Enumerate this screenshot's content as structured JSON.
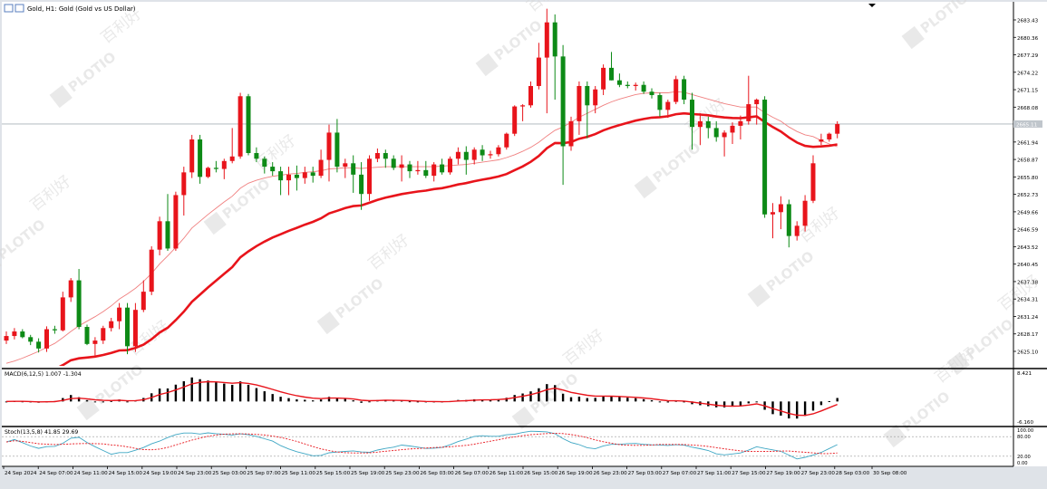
{
  "header": {
    "title": "Gold, H1:  Gold (Gold vs US Dollar)"
  },
  "colors": {
    "bull": "#e8141b",
    "bear": "#0d8a16",
    "ma_slow": "#e8141b",
    "ma_fast": "#f08080",
    "current_line": "#a9b0b8",
    "macd_hist": "#000000",
    "stoch_main": "#3fa7c4",
    "stoch_signal": "#e8141b",
    "watermark": "#d8d8d8"
  },
  "watermark": {
    "brand": "PLOTIO",
    "cjk": "百利好"
  },
  "price_axis": {
    "ticks": [
      "2683.43",
      "2680.36",
      "2677.29",
      "2674.22",
      "2671.15",
      "2668.08",
      "2665.01",
      "2661.94",
      "2658.87",
      "2655.80",
      "2652.73",
      "2649.66",
      "2646.59",
      "2643.52",
      "2640.45",
      "2637.38",
      "2634.31",
      "2631.24",
      "2628.17",
      "2625.10"
    ],
    "current_label": "2665.11"
  },
  "macd": {
    "label": "MACD(6,12,5) 1.007 -1.304",
    "axis_top": "8.421",
    "axis_bottom": "-6.160"
  },
  "stoch": {
    "label": "Stoch(13,5,8) 41.85 29.69",
    "levels": [
      "100.00",
      "80.00",
      "20.00",
      "0.00"
    ]
  },
  "time_axis": {
    "labels": [
      "24 Sep 2024",
      "24 Sep 07:00",
      "24 Sep 11:00",
      "24 Sep 15:00",
      "24 Sep 19:00",
      "24 Sep 23:00",
      "25 Sep 03:00",
      "25 Sep 07:00",
      "25 Sep 11:00",
      "25 Sep 15:00",
      "25 Sep 19:00",
      "25 Sep 23:00",
      "26 Sep 03:00",
      "26 Sep 07:00",
      "26 Sep 11:00",
      "26 Sep 15:00",
      "26 Sep 19:00",
      "26 Sep 23:00",
      "27 Sep 03:00",
      "27 Sep 07:00",
      "27 Sep 11:00",
      "27 Sep 15:00",
      "27 Sep 19:00",
      "27 Sep 23:00",
      "28 Sep 03:00",
      "30 Sep 08:00"
    ]
  },
  "chart_data": {
    "type": "candlestick",
    "title": "Gold, H1:  Gold (Gold vs US Dollar)",
    "ylim": [
      2623.5,
      2686.0
    ],
    "candles": [
      {
        "o": 2627.0,
        "h": 2628.6,
        "l": 2626.4,
        "c": 2627.8
      },
      {
        "o": 2627.8,
        "h": 2629.2,
        "l": 2627.2,
        "c": 2628.6
      },
      {
        "o": 2628.6,
        "h": 2629.0,
        "l": 2627.4,
        "c": 2627.6
      },
      {
        "o": 2627.6,
        "h": 2628.0,
        "l": 2626.2,
        "c": 2626.8
      },
      {
        "o": 2626.8,
        "h": 2627.4,
        "l": 2624.9,
        "c": 2625.6
      },
      {
        "o": 2625.6,
        "h": 2629.5,
        "l": 2625.0,
        "c": 2629.0
      },
      {
        "o": 2629.0,
        "h": 2629.6,
        "l": 2628.2,
        "c": 2628.8
      },
      {
        "o": 2628.8,
        "h": 2635.6,
        "l": 2628.6,
        "c": 2634.6
      },
      {
        "o": 2634.6,
        "h": 2638.0,
        "l": 2633.8,
        "c": 2637.6
      },
      {
        "o": 2637.6,
        "h": 2639.6,
        "l": 2629.0,
        "c": 2629.4
      },
      {
        "o": 2629.4,
        "h": 2629.8,
        "l": 2626.2,
        "c": 2626.4
      },
      {
        "o": 2626.4,
        "h": 2627.6,
        "l": 2624.3,
        "c": 2627.0
      },
      {
        "o": 2627.0,
        "h": 2629.6,
        "l": 2626.4,
        "c": 2629.2
      },
      {
        "o": 2629.2,
        "h": 2631.0,
        "l": 2628.6,
        "c": 2630.4
      },
      {
        "o": 2630.4,
        "h": 2633.6,
        "l": 2629.0,
        "c": 2632.8
      },
      {
        "o": 2632.8,
        "h": 2633.6,
        "l": 2624.6,
        "c": 2626.0
      },
      {
        "o": 2626.0,
        "h": 2633.6,
        "l": 2625.0,
        "c": 2632.4
      },
      {
        "o": 2632.4,
        "h": 2637.6,
        "l": 2632.0,
        "c": 2635.6
      },
      {
        "o": 2635.6,
        "h": 2643.6,
        "l": 2635.0,
        "c": 2643.0
      },
      {
        "o": 2643.0,
        "h": 2648.8,
        "l": 2642.0,
        "c": 2648.0
      },
      {
        "o": 2648.0,
        "h": 2652.8,
        "l": 2642.8,
        "c": 2643.2
      },
      {
        "o": 2643.2,
        "h": 2653.2,
        "l": 2642.8,
        "c": 2652.6
      },
      {
        "o": 2652.6,
        "h": 2657.6,
        "l": 2649.0,
        "c": 2656.6
      },
      {
        "o": 2656.6,
        "h": 2663.2,
        "l": 2655.6,
        "c": 2662.4
      },
      {
        "o": 2662.4,
        "h": 2663.2,
        "l": 2654.6,
        "c": 2655.8
      },
      {
        "o": 2655.8,
        "h": 2657.6,
        "l": 2655.6,
        "c": 2657.4
      },
      {
        "o": 2657.4,
        "h": 2658.6,
        "l": 2656.6,
        "c": 2657.2
      },
      {
        "o": 2657.2,
        "h": 2659.0,
        "l": 2655.4,
        "c": 2658.6
      },
      {
        "o": 2658.6,
        "h": 2664.4,
        "l": 2658.2,
        "c": 2659.4
      },
      {
        "o": 2659.4,
        "h": 2670.6,
        "l": 2659.0,
        "c": 2670.0
      },
      {
        "o": 2670.0,
        "h": 2670.4,
        "l": 2659.6,
        "c": 2660.0
      },
      {
        "o": 2660.0,
        "h": 2661.0,
        "l": 2658.4,
        "c": 2659.0
      },
      {
        "o": 2659.0,
        "h": 2659.4,
        "l": 2656.4,
        "c": 2657.6
      },
      {
        "o": 2657.6,
        "h": 2658.4,
        "l": 2656.0,
        "c": 2656.8
      },
      {
        "o": 2656.8,
        "h": 2657.6,
        "l": 2652.6,
        "c": 2655.2
      },
      {
        "o": 2655.2,
        "h": 2657.6,
        "l": 2652.6,
        "c": 2656.2
      },
      {
        "o": 2656.2,
        "h": 2657.8,
        "l": 2653.4,
        "c": 2655.6
      },
      {
        "o": 2655.6,
        "h": 2657.6,
        "l": 2654.6,
        "c": 2656.6
      },
      {
        "o": 2656.6,
        "h": 2657.6,
        "l": 2654.8,
        "c": 2656.0
      },
      {
        "o": 2656.0,
        "h": 2660.6,
        "l": 2655.6,
        "c": 2658.8
      },
      {
        "o": 2658.8,
        "h": 2665.0,
        "l": 2655.0,
        "c": 2663.6
      },
      {
        "o": 2663.6,
        "h": 2666.0,
        "l": 2656.6,
        "c": 2657.6
      },
      {
        "o": 2657.6,
        "h": 2659.0,
        "l": 2655.6,
        "c": 2658.2
      },
      {
        "o": 2658.2,
        "h": 2659.6,
        "l": 2653.0,
        "c": 2656.2
      },
      {
        "o": 2656.2,
        "h": 2658.4,
        "l": 2650.0,
        "c": 2652.8
      },
      {
        "o": 2652.8,
        "h": 2659.6,
        "l": 2651.6,
        "c": 2659.0
      },
      {
        "o": 2659.0,
        "h": 2660.8,
        "l": 2658.4,
        "c": 2660.0
      },
      {
        "o": 2660.0,
        "h": 2660.6,
        "l": 2657.4,
        "c": 2659.0
      },
      {
        "o": 2659.0,
        "h": 2659.6,
        "l": 2657.0,
        "c": 2657.4
      },
      {
        "o": 2657.4,
        "h": 2659.6,
        "l": 2655.0,
        "c": 2658.0
      },
      {
        "o": 2658.0,
        "h": 2658.6,
        "l": 2655.6,
        "c": 2656.8
      },
      {
        "o": 2656.8,
        "h": 2658.6,
        "l": 2656.2,
        "c": 2657.0
      },
      {
        "o": 2657.0,
        "h": 2658.6,
        "l": 2655.6,
        "c": 2656.0
      },
      {
        "o": 2656.0,
        "h": 2658.4,
        "l": 2655.0,
        "c": 2658.0
      },
      {
        "o": 2658.0,
        "h": 2659.0,
        "l": 2656.2,
        "c": 2656.6
      },
      {
        "o": 2656.6,
        "h": 2659.4,
        "l": 2656.2,
        "c": 2659.0
      },
      {
        "o": 2659.0,
        "h": 2661.0,
        "l": 2658.0,
        "c": 2660.2
      },
      {
        "o": 2660.2,
        "h": 2661.2,
        "l": 2656.2,
        "c": 2658.8
      },
      {
        "o": 2658.8,
        "h": 2661.0,
        "l": 2658.0,
        "c": 2660.6
      },
      {
        "o": 2660.6,
        "h": 2661.4,
        "l": 2658.6,
        "c": 2659.6
      },
      {
        "o": 2659.6,
        "h": 2660.4,
        "l": 2659.0,
        "c": 2659.8
      },
      {
        "o": 2659.8,
        "h": 2661.4,
        "l": 2659.4,
        "c": 2661.0
      },
      {
        "o": 2661.0,
        "h": 2663.6,
        "l": 2660.6,
        "c": 2663.4
      },
      {
        "o": 2663.4,
        "h": 2668.4,
        "l": 2663.0,
        "c": 2668.2
      },
      {
        "o": 2668.2,
        "h": 2668.6,
        "l": 2665.6,
        "c": 2668.4
      },
      {
        "o": 2668.4,
        "h": 2672.6,
        "l": 2668.0,
        "c": 2671.8
      },
      {
        "o": 2671.8,
        "h": 2679.4,
        "l": 2671.2,
        "c": 2676.8
      },
      {
        "o": 2676.8,
        "h": 2685.4,
        "l": 2667.0,
        "c": 2683.0
      },
      {
        "o": 2683.0,
        "h": 2684.4,
        "l": 2669.4,
        "c": 2677.0
      },
      {
        "o": 2677.0,
        "h": 2679.0,
        "l": 2654.4,
        "c": 2661.2
      },
      {
        "o": 2661.2,
        "h": 2666.4,
        "l": 2660.4,
        "c": 2665.6
      },
      {
        "o": 2665.6,
        "h": 2672.6,
        "l": 2663.2,
        "c": 2671.8
      },
      {
        "o": 2671.8,
        "h": 2672.6,
        "l": 2662.6,
        "c": 2668.4
      },
      {
        "o": 2668.4,
        "h": 2671.8,
        "l": 2667.0,
        "c": 2671.2
      },
      {
        "o": 2671.2,
        "h": 2675.6,
        "l": 2670.2,
        "c": 2675.0
      },
      {
        "o": 2675.0,
        "h": 2677.8,
        "l": 2672.8,
        "c": 2672.8
      },
      {
        "o": 2672.8,
        "h": 2674.0,
        "l": 2671.6,
        "c": 2672.0
      },
      {
        "o": 2672.0,
        "h": 2672.6,
        "l": 2671.4,
        "c": 2671.8
      },
      {
        "o": 2671.8,
        "h": 2672.4,
        "l": 2671.0,
        "c": 2672.0
      },
      {
        "o": 2672.0,
        "h": 2672.6,
        "l": 2670.4,
        "c": 2670.8
      },
      {
        "o": 2670.8,
        "h": 2671.4,
        "l": 2669.6,
        "c": 2670.2
      },
      {
        "o": 2670.2,
        "h": 2670.6,
        "l": 2666.4,
        "c": 2667.6
      },
      {
        "o": 2667.6,
        "h": 2669.4,
        "l": 2666.2,
        "c": 2669.0
      },
      {
        "o": 2669.0,
        "h": 2673.6,
        "l": 2668.6,
        "c": 2673.0
      },
      {
        "o": 2673.0,
        "h": 2673.6,
        "l": 2668.6,
        "c": 2669.4
      },
      {
        "o": 2669.4,
        "h": 2670.6,
        "l": 2660.6,
        "c": 2664.6
      },
      {
        "o": 2664.6,
        "h": 2667.0,
        "l": 2661.4,
        "c": 2665.6
      },
      {
        "o": 2665.6,
        "h": 2666.4,
        "l": 2662.6,
        "c": 2664.4
      },
      {
        "o": 2664.4,
        "h": 2665.6,
        "l": 2662.0,
        "c": 2662.8
      },
      {
        "o": 2662.8,
        "h": 2664.0,
        "l": 2659.4,
        "c": 2663.6
      },
      {
        "o": 2663.6,
        "h": 2665.4,
        "l": 2661.6,
        "c": 2664.8
      },
      {
        "o": 2664.8,
        "h": 2666.6,
        "l": 2662.4,
        "c": 2665.6
      },
      {
        "o": 2665.6,
        "h": 2673.6,
        "l": 2665.0,
        "c": 2668.6
      },
      {
        "o": 2668.6,
        "h": 2669.6,
        "l": 2665.0,
        "c": 2669.4
      },
      {
        "o": 2669.4,
        "h": 2670.0,
        "l": 2648.6,
        "c": 2649.2
      },
      {
        "o": 2649.2,
        "h": 2651.2,
        "l": 2645.0,
        "c": 2649.6
      },
      {
        "o": 2649.6,
        "h": 2652.4,
        "l": 2646.6,
        "c": 2651.0
      },
      {
        "o": 2651.0,
        "h": 2651.8,
        "l": 2643.4,
        "c": 2645.4
      },
      {
        "o": 2645.4,
        "h": 2648.0,
        "l": 2644.6,
        "c": 2647.2
      },
      {
        "o": 2647.2,
        "h": 2652.6,
        "l": 2646.2,
        "c": 2651.6
      },
      {
        "o": 2651.6,
        "h": 2659.6,
        "l": 2651.2,
        "c": 2658.2
      },
      {
        "o": 2662.0,
        "h": 2663.4,
        "l": 2661.4,
        "c": 2662.4
      },
      {
        "o": 2662.4,
        "h": 2663.6,
        "l": 2662.0,
        "c": 2663.4
      },
      {
        "o": 2663.4,
        "h": 2665.6,
        "l": 2662.6,
        "c": 2665.1
      }
    ],
    "ma_fast": [
      2623.0,
      2623.4,
      2623.9,
      2624.5,
      2625.1,
      2625.8,
      2626.5,
      2627.5,
      2628.6,
      2629.6,
      2630.4,
      2631.2,
      2632.1,
      2633.1,
      2634.3,
      2635.2,
      2636.2,
      2637.4,
      2638.8,
      2640.5,
      2641.9,
      2643.4,
      2645.0,
      2646.8,
      2648.0,
      2649.2,
      2650.3,
      2651.4,
      2652.4,
      2653.8,
      2654.7,
      2655.2,
      2655.6,
      2655.9,
      2656.1,
      2656.3,
      2656.4,
      2656.6,
      2656.7,
      2656.9,
      2657.2,
      2657.3,
      2657.4,
      2657.4,
      2657.3,
      2657.4,
      2657.5,
      2657.6,
      2657.6,
      2657.6,
      2657.6,
      2657.6,
      2657.6,
      2657.6,
      2657.7,
      2657.8,
      2657.9,
      2658.0,
      2658.2,
      2658.4,
      2658.6,
      2658.8,
      2659.2,
      2659.7,
      2660.3,
      2661.0,
      2661.9,
      2663.0,
      2664.0,
      2664.6,
      2665.4,
      2666.3,
      2667.0,
      2667.7,
      2668.4,
      2669.0,
      2669.5,
      2669.9,
      2670.3,
      2670.5,
      2670.6,
      2670.6,
      2670.6,
      2670.8,
      2670.7,
      2670.3,
      2669.9,
      2669.5,
      2669.1,
      2668.7,
      2668.4,
      2668.1,
      2668.1,
      2668.1,
      2667.1,
      2666.3,
      2665.6,
      2664.6,
      2663.8,
      2663.2,
      2662.9,
      2662.2,
      2661.6,
      2661.1
    ]
  }
}
